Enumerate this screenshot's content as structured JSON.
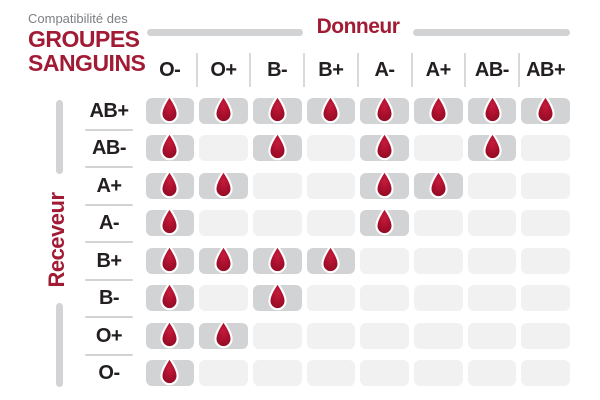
{
  "title": {
    "eyebrow": "Compatibilité des",
    "line1": "GROUPES",
    "line2": "SANGUINS"
  },
  "axis": {
    "donor_label": "Donneur",
    "receiver_label": "Receveur"
  },
  "icons": {
    "cell_icon": "blood-drop-icon"
  },
  "colors": {
    "brand_red": "#A21B35",
    "drop_red_light": "#C51B3C",
    "drop_red": "#A80F2C",
    "drop_red_dark": "#8C0A22",
    "drop_outline": "#FFFFFF",
    "cell_active_gray": "#D2D3D4",
    "cell_inactive_gray": "#F1F1F2",
    "axis_bar_gray": "#D1D3D4",
    "label_dark": "#231F20",
    "eyebrow_gray": "#7D7F82"
  },
  "chart_data": {
    "type": "heatmap",
    "title": "Compatibilité des groupes sanguins",
    "x_axis_label": "Donneur",
    "y_axis_label": "Receveur",
    "donors": [
      "O-",
      "O+",
      "B-",
      "B+",
      "A-",
      "A+",
      "AB-",
      "AB+"
    ],
    "receivers": [
      "AB+",
      "AB-",
      "A+",
      "A-",
      "B+",
      "B-",
      "O+",
      "O-"
    ],
    "matrix": [
      [
        1,
        1,
        1,
        1,
        1,
        1,
        1,
        1
      ],
      [
        1,
        0,
        1,
        0,
        1,
        0,
        1,
        0
      ],
      [
        1,
        1,
        0,
        0,
        1,
        1,
        0,
        0
      ],
      [
        1,
        0,
        0,
        0,
        1,
        0,
        0,
        0
      ],
      [
        1,
        1,
        1,
        1,
        0,
        0,
        0,
        0
      ],
      [
        1,
        0,
        1,
        0,
        0,
        0,
        0,
        0
      ],
      [
        1,
        1,
        0,
        0,
        0,
        0,
        0,
        0
      ],
      [
        1,
        0,
        0,
        0,
        0,
        0,
        0,
        0
      ]
    ],
    "compatible": {
      "AB+": [
        "O-",
        "O+",
        "B-",
        "B+",
        "A-",
        "A+",
        "AB-",
        "AB+"
      ],
      "AB-": [
        "O-",
        "B-",
        "A-",
        "AB-"
      ],
      "A+": [
        "O-",
        "O+",
        "A-",
        "A+"
      ],
      "A-": [
        "O-",
        "A-"
      ],
      "B+": [
        "O-",
        "O+",
        "B-",
        "B+"
      ],
      "B-": [
        "O-",
        "B-"
      ],
      "O+": [
        "O-",
        "O+"
      ],
      "O-": [
        "O-"
      ]
    },
    "legend": "drop = compatible, empty = incompatible",
    "grid": "rounded pill cells, dark gray = compatible, light gray = incompatible"
  }
}
